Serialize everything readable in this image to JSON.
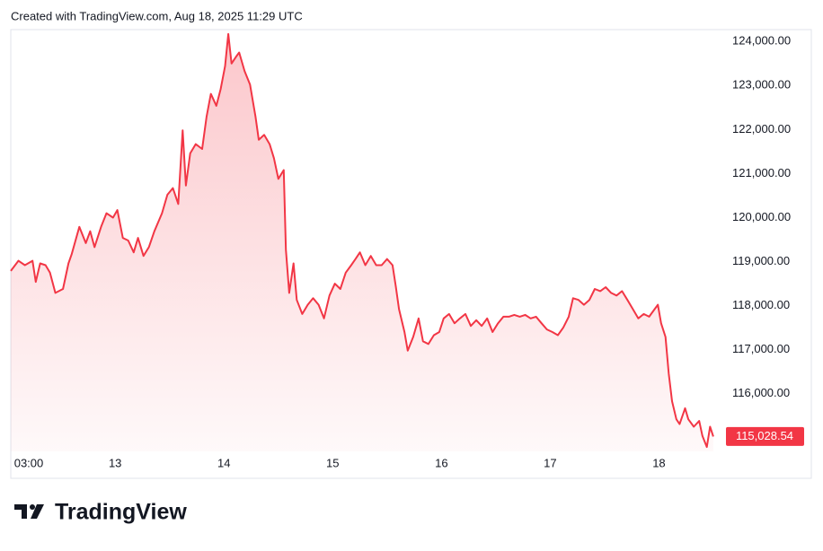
{
  "header": "Created with TradingView.com, Aug 18, 2025 11:29 UTC",
  "footer": {
    "brand": "TradingView"
  },
  "chart_data": {
    "type": "area",
    "x": [
      12.04,
      12.11,
      12.17,
      12.24,
      12.27,
      12.31,
      12.36,
      12.4,
      12.45,
      12.52,
      12.57,
      12.6,
      12.67,
      12.73,
      12.77,
      12.81,
      12.87,
      12.92,
      12.98,
      13.02,
      13.07,
      13.12,
      13.17,
      13.21,
      13.26,
      13.31,
      13.36,
      13.43,
      13.48,
      13.53,
      13.58,
      13.62,
      13.65,
      13.69,
      13.74,
      13.8,
      13.84,
      13.88,
      13.93,
      13.97,
      14.01,
      14.04,
      14.07,
      14.11,
      14.14,
      14.19,
      14.24,
      14.29,
      14.32,
      14.37,
      14.42,
      14.46,
      14.5,
      14.55,
      14.57,
      14.6,
      14.64,
      14.67,
      14.72,
      14.77,
      14.82,
      14.87,
      14.92,
      14.97,
      15.02,
      15.07,
      15.12,
      15.17,
      15.21,
      15.25,
      15.3,
      15.35,
      15.4,
      15.45,
      15.5,
      15.55,
      15.58,
      15.61,
      15.66,
      15.69,
      15.74,
      15.79,
      15.83,
      15.88,
      15.93,
      15.98,
      16.02,
      16.07,
      16.12,
      16.17,
      16.22,
      16.27,
      16.32,
      16.37,
      16.42,
      16.47,
      16.52,
      16.57,
      16.62,
      16.67,
      16.72,
      16.77,
      16.82,
      16.87,
      16.92,
      16.97,
      17.02,
      17.07,
      17.12,
      17.17,
      17.21,
      17.26,
      17.31,
      17.36,
      17.41,
      17.46,
      17.51,
      17.56,
      17.61,
      17.66,
      17.71,
      17.76,
      17.81,
      17.86,
      17.91,
      17.96,
      17.99,
      18.02,
      18.06,
      18.09,
      18.12,
      18.16,
      18.19,
      18.24,
      18.27,
      18.32,
      18.37,
      18.4,
      18.44,
      18.47,
      18.5
    ],
    "series": [
      {
        "color": "#f23645",
        "values": [
          118790,
          119020,
          118920,
          119020,
          118540,
          118960,
          118920,
          118750,
          118290,
          118380,
          118960,
          119170,
          119790,
          119420,
          119690,
          119330,
          119790,
          120100,
          120000,
          120170,
          119540,
          119480,
          119210,
          119540,
          119130,
          119330,
          119690,
          120100,
          120520,
          120670,
          120310,
          121980,
          120730,
          121460,
          121670,
          121560,
          122290,
          122810,
          122540,
          122920,
          123440,
          124170,
          123500,
          123650,
          123750,
          123330,
          123020,
          122290,
          121770,
          121880,
          121670,
          121350,
          120880,
          121080,
          119270,
          118290,
          118960,
          118130,
          117810,
          118020,
          118170,
          118020,
          117710,
          118230,
          118500,
          118380,
          118750,
          118920,
          119060,
          119210,
          118920,
          119130,
          118920,
          118920,
          119060,
          118920,
          118440,
          117920,
          117400,
          116980,
          117290,
          117710,
          117190,
          117130,
          117330,
          117400,
          117710,
          117810,
          117600,
          117710,
          117810,
          117540,
          117670,
          117540,
          117710,
          117400,
          117600,
          117750,
          117750,
          117790,
          117750,
          117790,
          117710,
          117750,
          117600,
          117460,
          117400,
          117330,
          117500,
          117750,
          118170,
          118130,
          118020,
          118130,
          118380,
          118330,
          118420,
          118290,
          118230,
          118330,
          118130,
          117920,
          117710,
          117810,
          117750,
          117920,
          118020,
          117600,
          117290,
          116460,
          115830,
          115420,
          115310,
          115670,
          115420,
          115250,
          115380,
          115040,
          114790,
          115250,
          115028.54
        ]
      }
    ],
    "last_price": {
      "value": 115028.54,
      "label": "115,028.54"
    },
    "xlim": [
      12.04,
      18.55
    ],
    "xticks": [
      {
        "value": 12.125,
        "label": "03:00"
      },
      13,
      14,
      15,
      16,
      17,
      18
    ],
    "ylim": [
      114690,
      124270
    ],
    "yticks": [
      {
        "value": 116000,
        "label": "116,000.00"
      },
      {
        "value": 117000,
        "label": "117,000.00"
      },
      {
        "value": 118000,
        "label": "118,000.00"
      },
      {
        "value": 119000,
        "label": "119,000.00"
      },
      {
        "value": 120000,
        "label": "120,000.00"
      },
      {
        "value": 121000,
        "label": "121,000.00"
      },
      {
        "value": 122000,
        "label": "122,000.00"
      },
      {
        "value": 123000,
        "label": "123,000.00"
      },
      {
        "value": 124000,
        "label": "124,000.00"
      }
    ],
    "grid": false
  }
}
